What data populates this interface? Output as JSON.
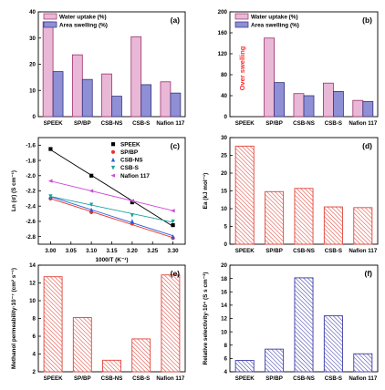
{
  "chart_data": [
    {
      "id": "a",
      "panel_label": "(a)",
      "type": "bar",
      "categories": [
        "SPEEK",
        "SP/BP",
        "CSB-NS",
        "CSB-S",
        "Nafion 117"
      ],
      "series": [
        {
          "name": "Water uptake (%)",
          "values": [
            36.2,
            23.6,
            16.3,
            30.5,
            13.3
          ],
          "color": "#e9b8d6",
          "edge": "#9c2f6d"
        },
        {
          "name": "Area swelling (%)",
          "values": [
            17.2,
            14.2,
            7.8,
            12.2,
            9.0
          ],
          "color": "#8f8fd6",
          "edge": "#33337a"
        }
      ],
      "ylim": [
        0,
        40
      ],
      "yticks": [
        0,
        10,
        20,
        30,
        40
      ],
      "xlabel": "",
      "ylabel": "",
      "legend_pos": "top-left"
    },
    {
      "id": "b",
      "panel_label": "(b)",
      "type": "bar",
      "categories": [
        "SPEEK",
        "SP/BP",
        "CSB-NS",
        "CSB-S",
        "Nafion 117"
      ],
      "series": [
        {
          "name": "Water uptake (%)",
          "values": [
            null,
            150,
            44,
            64,
            31
          ],
          "color": "#e9b8d6",
          "edge": "#9c2f6d"
        },
        {
          "name": "Area swelling (%)",
          "values": [
            null,
            65,
            40,
            48,
            29
          ],
          "color": "#8f8fd6",
          "edge": "#33337a"
        }
      ],
      "annotation": "Over swelling",
      "ylim": [
        0,
        200
      ],
      "yticks": [
        0,
        40,
        80,
        120,
        160,
        200
      ],
      "xlabel": "",
      "ylabel": "",
      "legend_pos": "top-left"
    },
    {
      "id": "c",
      "panel_label": "(c)",
      "type": "scatter",
      "xlabel": "1000/T (K⁻¹)",
      "ylabel": "Ln (σ) (S cm⁻¹)",
      "xlim": [
        2.97,
        3.33
      ],
      "ylim": [
        -2.9,
        -1.5
      ],
      "xticks": [
        "3.00",
        "3.05",
        "3.10",
        "3.15",
        "3.20",
        "3.25",
        "3.30"
      ],
      "yticks": [
        "-1.6",
        "-1.8",
        "-2.0",
        "-2.2",
        "-2.4",
        "-2.6",
        "-2.8"
      ],
      "series": [
        {
          "name": "SPEEK",
          "marker": "square",
          "color": "#000000",
          "x": [
            3.0,
            3.1,
            3.2,
            3.3
          ],
          "y": [
            -1.65,
            -2.0,
            -2.35,
            -2.65
          ]
        },
        {
          "name": "SP/BP",
          "marker": "circle",
          "color": "#e8332b",
          "x": [
            3.0,
            3.1,
            3.2,
            3.3
          ],
          "y": [
            -2.3,
            -2.48,
            -2.63,
            -2.82
          ]
        },
        {
          "name": "CSB-NS",
          "marker": "triangle-up",
          "color": "#2d5ad6",
          "x": [
            3.0,
            3.1,
            3.2,
            3.3
          ],
          "y": [
            -2.28,
            -2.45,
            -2.6,
            -2.8
          ]
        },
        {
          "name": "CSB-S",
          "marker": "triangle-down",
          "color": "#1aa0a0",
          "x": [
            3.0,
            3.1,
            3.2,
            3.3
          ],
          "y": [
            -2.27,
            -2.38,
            -2.52,
            -2.6
          ]
        },
        {
          "name": "Nafion 117",
          "marker": "triangle-left",
          "color": "#d04bd6",
          "x": [
            3.0,
            3.1,
            3.2,
            3.3
          ],
          "y": [
            -2.07,
            -2.2,
            -2.33,
            -2.46
          ]
        }
      ],
      "legend_pos": "top-right"
    },
    {
      "id": "d",
      "panel_label": "(d)",
      "type": "bar",
      "categories": [
        "SPEEK",
        "SP/BP",
        "CSB-NS",
        "CSB-S",
        "Nafion 117"
      ],
      "values": [
        27.6,
        14.8,
        15.7,
        10.5,
        10.3
      ],
      "hatch": "red",
      "ylim": [
        0,
        30
      ],
      "yticks": [
        0,
        5,
        10,
        15,
        20,
        25,
        30
      ],
      "xlabel": "",
      "ylabel": "Ea (kJ mol⁻¹)"
    },
    {
      "id": "e",
      "panel_label": "(e)",
      "type": "bar",
      "categories": [
        "SPEEK",
        "SP/BP",
        "CSB-NS",
        "CSB-S",
        "Nafion 117"
      ],
      "values": [
        12.7,
        8.1,
        3.3,
        5.7,
        12.9
      ],
      "hatch": "red",
      "ylim": [
        2,
        14
      ],
      "yticks": [
        2,
        4,
        6,
        8,
        10,
        12,
        14
      ],
      "xlabel": "",
      "ylabel": "Methanol permeability·10⁻⁷ (cm² s⁻¹)"
    },
    {
      "id": "f",
      "panel_label": "(f)",
      "type": "bar",
      "categories": [
        "SPEEK",
        "SP/BP",
        "CSB-NS",
        "CSB-S",
        "Nafion 117"
      ],
      "values": [
        5.7,
        7.4,
        18.1,
        12.4,
        6.7
      ],
      "hatch": "blue",
      "ylim": [
        4,
        20
      ],
      "yticks": [
        4,
        6,
        8,
        10,
        12,
        14,
        16,
        18,
        20
      ],
      "xlabel": "",
      "ylabel": "Relative selectivity·10⁴ (S s cm⁻³)"
    }
  ]
}
